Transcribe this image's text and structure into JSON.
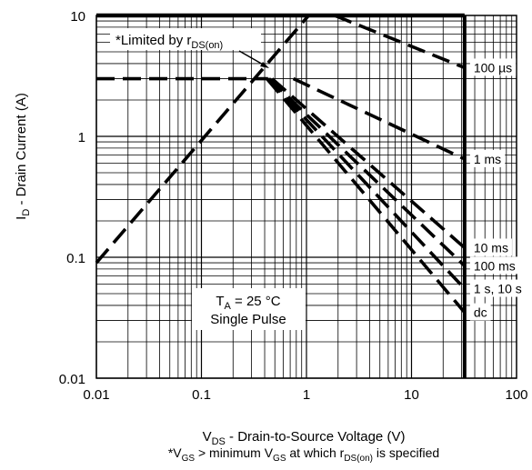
{
  "chart_data": {
    "type": "line",
    "x_scale": "log",
    "y_scale": "log",
    "xlim": [
      0.01,
      100
    ],
    "ylim": [
      0.01,
      10
    ],
    "grid": true,
    "x_ticks": [
      "0.01",
      "0.1",
      "1",
      "10",
      "100"
    ],
    "y_ticks": [
      "10",
      "1",
      "0.1",
      "0.01"
    ],
    "xlabel": {
      "main": "V",
      "sub": "DS",
      "rest": " - Drain-to-Source Voltage (V)"
    },
    "ylabel": {
      "main": "I",
      "sub": "D",
      "rest": " - Drain Current (A)"
    },
    "footnote": {
      "p1": "*V",
      "s1": "GS",
      "p2": " > minimum V",
      "s2": "GS",
      "p3": " at which r",
      "s3": "DS(on)",
      "p4": " is specified"
    },
    "limit_annotation": {
      "prefix": "*Limited by r",
      "sub": "DS(on)"
    },
    "conditions": {
      "line1_main": "T",
      "line1_sub": "A",
      "line1_rest": " = 25 °C",
      "line2": "Single Pulse"
    },
    "max_voltage": 32,
    "max_current": 10,
    "rds_limit": [
      [
        0.01,
        0.09
      ],
      [
        1.05,
        10
      ]
    ],
    "current_limit": 3,
    "series": [
      {
        "name": "100 µs",
        "points": [
          [
            1.85,
            10
          ],
          [
            32,
            3.7
          ]
        ]
      },
      {
        "name": "1 ms",
        "points": [
          [
            0.75,
            3
          ],
          [
            32,
            0.65
          ]
        ]
      },
      {
        "name": "10 ms",
        "points": [
          [
            0.47,
            3
          ],
          [
            32,
            0.12
          ]
        ]
      },
      {
        "name": "100 ms",
        "points": [
          [
            0.44,
            3
          ],
          [
            32,
            0.085
          ]
        ]
      },
      {
        "name": "1 s, 10 s",
        "points": [
          [
            0.43,
            3
          ],
          [
            32,
            0.055
          ]
        ]
      },
      {
        "name": "dc",
        "points": [
          [
            0.42,
            3
          ],
          [
            32,
            0.035
          ]
        ]
      }
    ]
  }
}
